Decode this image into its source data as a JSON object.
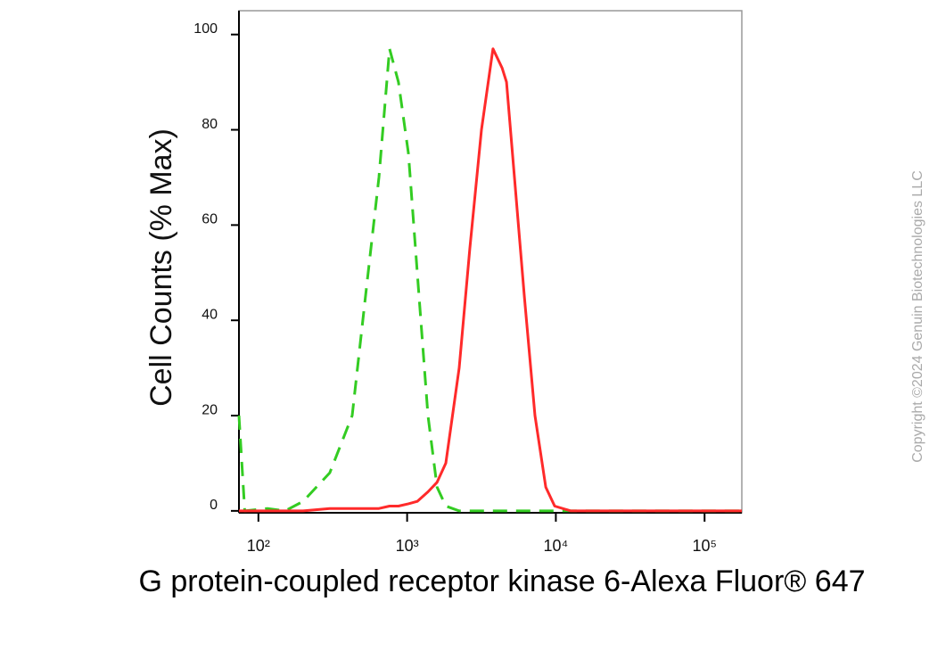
{
  "chart_data": {
    "type": "line",
    "ylabel": "Cell Counts (% Max)",
    "xlabel": "G protein-coupled receptor kinase 6-Alexa Fluor® 647",
    "watermark": "Copyright ©2024 Genuin Biotechnologies LLC",
    "xscale": "log",
    "xlim": [
      74,
      178000
    ],
    "ylim": [
      -0.4,
      105
    ],
    "xticks": [
      {
        "value": 100,
        "label": "10²"
      },
      {
        "value": 1000,
        "label": "10³"
      },
      {
        "value": 10000,
        "label": "10⁴"
      },
      {
        "value": 100000,
        "label": "10⁵"
      }
    ],
    "yticks": [
      0,
      20,
      40,
      60,
      80,
      100
    ],
    "x": [
      74,
      81,
      115,
      151,
      200,
      302,
      427,
      525,
      646,
      762,
      875,
      1020,
      1170,
      1380,
      1590,
      1820,
      2240,
      2640,
      3160,
      3780,
      4350,
      4660,
      5270,
      6140,
      7240,
      8550,
      9820,
      12600,
      28800,
      178000
    ],
    "series": [
      {
        "color": "#33cc22",
        "linestyle": "dashed",
        "values": [
          20,
          0,
          0.5,
          0,
          2,
          8,
          20,
          45,
          70,
          97,
          90,
          75,
          50,
          20,
          5,
          1,
          0,
          0,
          0,
          0,
          0,
          0,
          0,
          0,
          0,
          0,
          0,
          0,
          0,
          0
        ]
      },
      {
        "color": "#ff2a2a",
        "linestyle": "solid",
        "values": [
          0,
          0,
          0,
          0,
          0,
          0.5,
          0.5,
          0.5,
          0.5,
          1,
          1,
          1.5,
          2,
          4,
          6,
          10,
          30,
          55,
          80,
          97,
          93,
          90,
          70,
          45,
          20,
          5,
          1,
          0,
          0,
          0
        ]
      }
    ]
  }
}
